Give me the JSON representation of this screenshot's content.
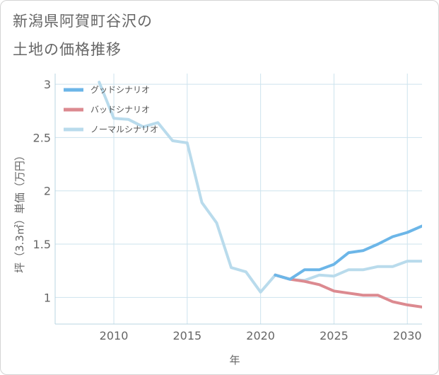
{
  "header": {
    "title_line1": "新潟県阿賀町谷沢の",
    "title_line2": "土地の価格推移"
  },
  "chart_data": {
    "type": "line",
    "title": "新潟県阿賀町谷沢の土地の価格推移",
    "xlabel": "年",
    "ylabel": "坪（3.3㎡）単価（万円）",
    "xlim": [
      2006,
      2031
    ],
    "ylim": [
      0.75,
      3.1
    ],
    "xticks": [
      2010,
      2015,
      2020,
      2025,
      2030
    ],
    "yticks": [
      1,
      1.5,
      2,
      2.5,
      3
    ],
    "xtick_labels": [
      "2010",
      "2015",
      "2020",
      "2025",
      "2030"
    ],
    "ytick_labels": [
      "1",
      "1.5",
      "2",
      "2.5",
      "3"
    ],
    "grid": true,
    "legend_position": "top-left",
    "series": [
      {
        "name": "グッドシナリオ",
        "color": "#6cb6e8",
        "x": [
          2021,
          2022,
          2023,
          2024,
          2025,
          2026,
          2027,
          2028,
          2029,
          2030,
          2031
        ],
        "y": [
          1.21,
          1.17,
          1.26,
          1.26,
          1.31,
          1.42,
          1.44,
          1.5,
          1.57,
          1.61,
          1.67
        ]
      },
      {
        "name": "バッドシナリオ",
        "color": "#dc8a90",
        "x": [
          2021,
          2022,
          2023,
          2024,
          2025,
          2026,
          2027,
          2028,
          2029,
          2030,
          2031
        ],
        "y": [
          1.21,
          1.17,
          1.15,
          1.12,
          1.06,
          1.04,
          1.02,
          1.02,
          0.96,
          0.93,
          0.91
        ]
      },
      {
        "name": "ノーマルシナリオ",
        "color": "#b9dbec",
        "x": [
          2009,
          2010,
          2011,
          2012,
          2013,
          2014,
          2015,
          2016,
          2017,
          2018,
          2019,
          2020,
          2021,
          2022,
          2023,
          2024,
          2025,
          2026,
          2027,
          2028,
          2029,
          2030,
          2031
        ],
        "y": [
          3.02,
          2.68,
          2.67,
          2.6,
          2.64,
          2.47,
          2.45,
          1.89,
          1.7,
          1.28,
          1.24,
          1.05,
          1.21,
          1.17,
          1.16,
          1.21,
          1.2,
          1.26,
          1.26,
          1.29,
          1.29,
          1.34,
          1.34
        ]
      }
    ]
  }
}
